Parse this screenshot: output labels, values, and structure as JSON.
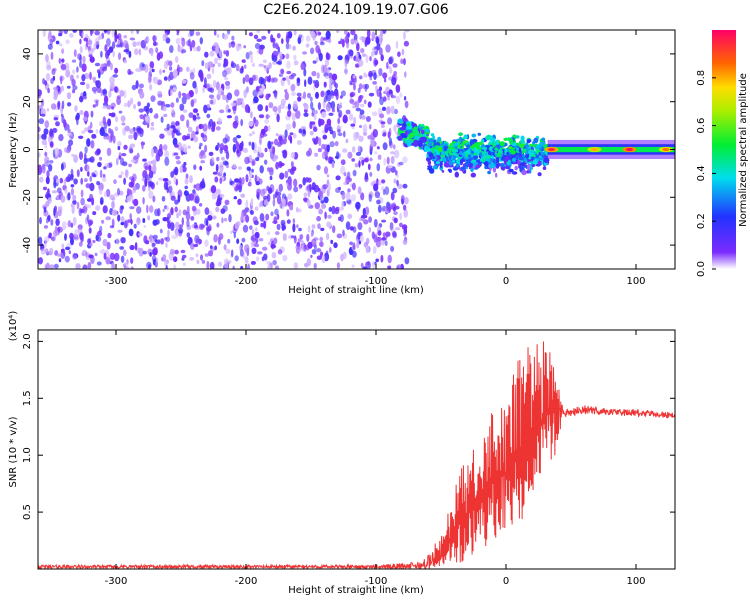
{
  "title": "C2E6.2024.109.19.07.G06",
  "chart_data": [
    {
      "type": "heatmap",
      "title": "",
      "xlabel": "Height of straight line (km)",
      "ylabel": "Frequency (Hz)",
      "xlim": [
        -360,
        130
      ],
      "ylim": [
        -50,
        50
      ],
      "xticks": [
        -300,
        -200,
        -100,
        0,
        100
      ],
      "yticks": [
        -40,
        -20,
        0,
        20,
        40
      ],
      "colorbar": {
        "label": "Normalized spectral amplitude",
        "range": [
          0.0,
          1.0
        ],
        "ticks": [
          "0.0",
          "0.2",
          "0.4",
          "0.6",
          "0.8"
        ],
        "colormap": "rainbow"
      },
      "regions": [
        {
          "name": "noise",
          "x": [
            -360,
            -80
          ],
          "freq": [
            -50,
            50
          ],
          "amplitude": 0.1
        },
        {
          "name": "transition",
          "x": [
            -82,
            -60
          ],
          "freq": [
            3,
            12
          ],
          "amplitude": 0.5
        },
        {
          "name": "scintillation",
          "x": [
            -60,
            32
          ],
          "freq": [
            -15,
            10
          ],
          "amplitude": 0.45
        },
        {
          "name": "carrier",
          "x": [
            32,
            130
          ],
          "freq": [
            -2,
            2
          ],
          "amplitude": 0.9
        }
      ],
      "carrier_peaks": [
        {
          "x": 35,
          "amplitude": 0.95
        },
        {
          "x": 68,
          "amplitude": 0.8
        },
        {
          "x": 95,
          "amplitude": 0.98
        },
        {
          "x": 123,
          "amplitude": 0.85
        }
      ]
    },
    {
      "type": "line",
      "title": "",
      "xlabel": "Height of straight line (km)",
      "ylabel": "SNR (10 * v/v)",
      "ymultiplier": "(x10⁴)",
      "xlim": [
        -360,
        130
      ],
      "ylim": [
        0,
        2.1
      ],
      "xticks": [
        -300,
        -200,
        -100,
        0,
        100
      ],
      "yticks": [
        "0.5",
        "1.0",
        "1.5",
        "2.0"
      ],
      "series": [
        {
          "color": "#ee3333",
          "x": [
            -360,
            -100,
            -65,
            -50,
            -40,
            -30,
            -20,
            -10,
            0,
            10,
            20,
            30,
            38,
            44,
            50,
            60,
            80,
            100,
            130
          ],
          "y": [
            0.02,
            0.02,
            0.03,
            0.1,
            0.35,
            0.5,
            0.55,
            0.75,
            0.85,
            1.0,
            1.15,
            1.35,
            1.45,
            1.37,
            1.38,
            1.4,
            1.38,
            1.37,
            1.35
          ],
          "y_max": [
            0.04,
            0.04,
            0.08,
            0.3,
            0.7,
            1.1,
            1.0,
            1.5,
            1.6,
            1.85,
            2.0,
            2.1,
            1.8,
            1.4,
            1.42,
            1.44,
            1.41,
            1.4,
            1.38
          ],
          "y_min": [
            0.01,
            0.01,
            0.01,
            0.02,
            0.05,
            0.05,
            0.15,
            0.2,
            0.25,
            0.4,
            0.55,
            0.8,
            1.0,
            1.34,
            1.35,
            1.36,
            1.35,
            1.34,
            1.32
          ]
        }
      ]
    }
  ]
}
